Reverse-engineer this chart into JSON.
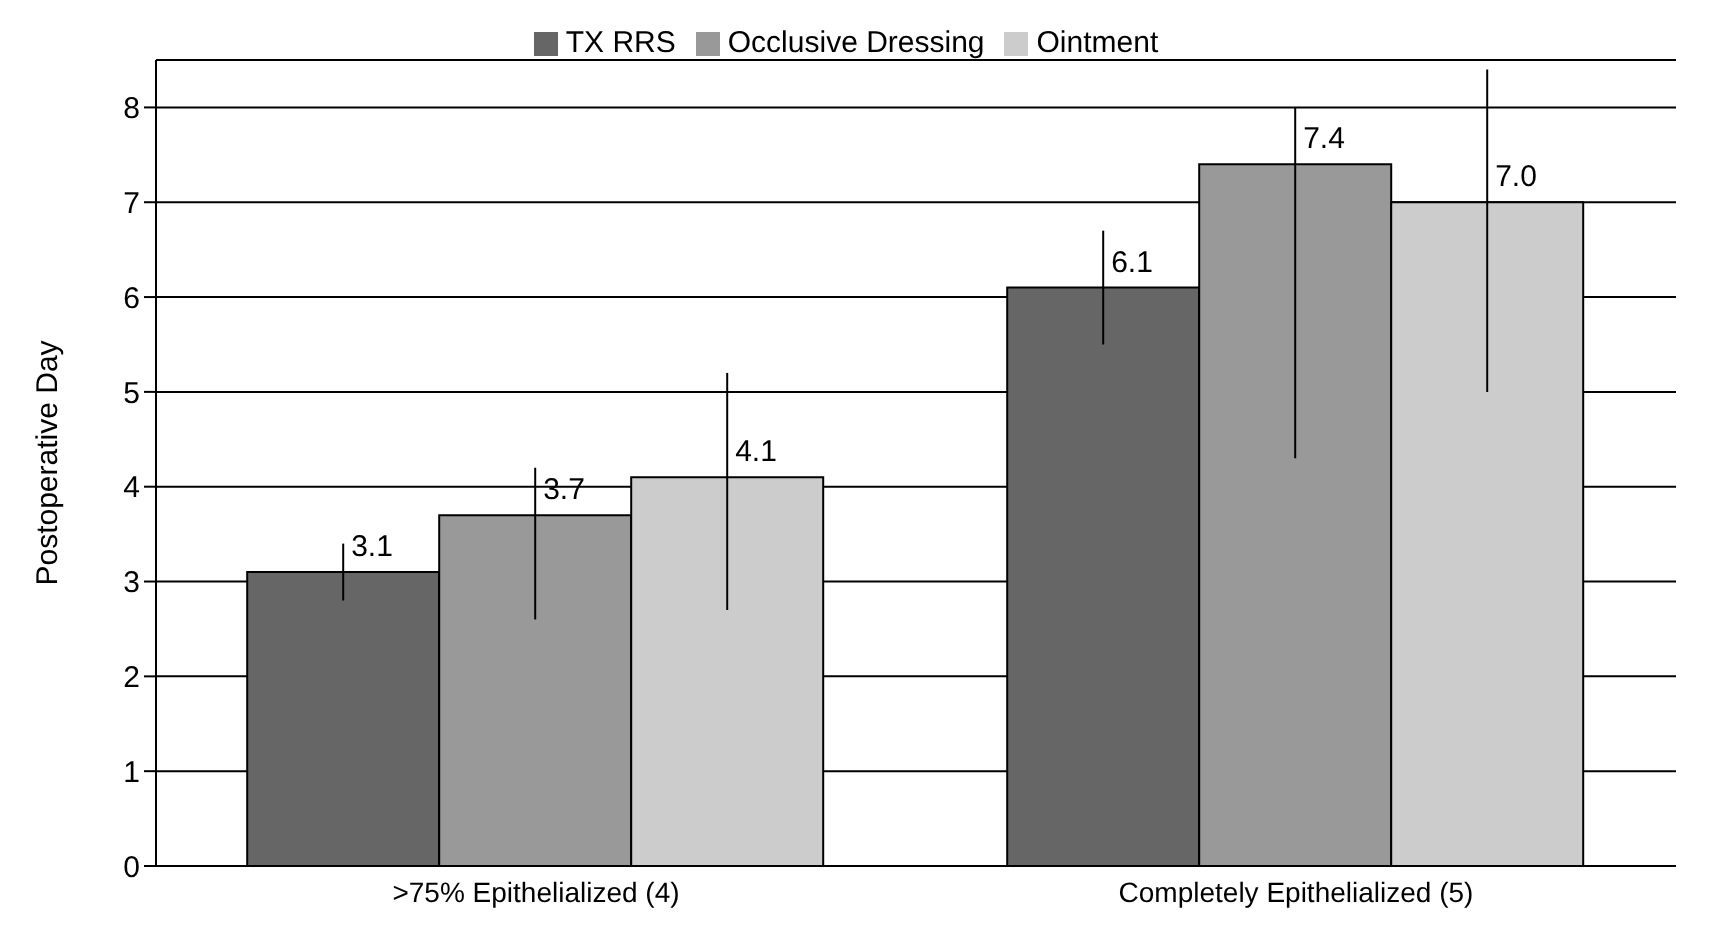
{
  "chart_data": {
    "type": "bar",
    "ylabel": "Postoperative Day",
    "categories": [
      ">75% Epithelialized (4)",
      "Completely Epithelialized (5)"
    ],
    "series": [
      {
        "name": "TX RRS",
        "color": "#666666",
        "values": [
          3.1,
          6.1
        ],
        "errors": [
          0.3,
          0.6
        ],
        "value_labels": [
          "3.1",
          "6.1"
        ]
      },
      {
        "name": "Occlusive Dressing",
        "color": "#999999",
        "values": [
          3.7,
          7.4
        ],
        "errors": [
          [
            2.6,
            4.2
          ],
          [
            4.3,
            8.0
          ]
        ],
        "value_labels": [
          "3.7",
          "7.4"
        ]
      },
      {
        "name": "Ointment",
        "color": "#cccccc",
        "values": [
          4.1,
          7.0
        ],
        "errors": [
          [
            2.7,
            5.2
          ],
          [
            5.0,
            8.4
          ]
        ],
        "value_labels": [
          "4.1",
          "7.0"
        ]
      }
    ],
    "ylim": [
      0,
      8.5
    ],
    "yticks": [
      0,
      1,
      2,
      3,
      4,
      5,
      6,
      7,
      8
    ],
    "grid": "y",
    "legend": "top"
  }
}
